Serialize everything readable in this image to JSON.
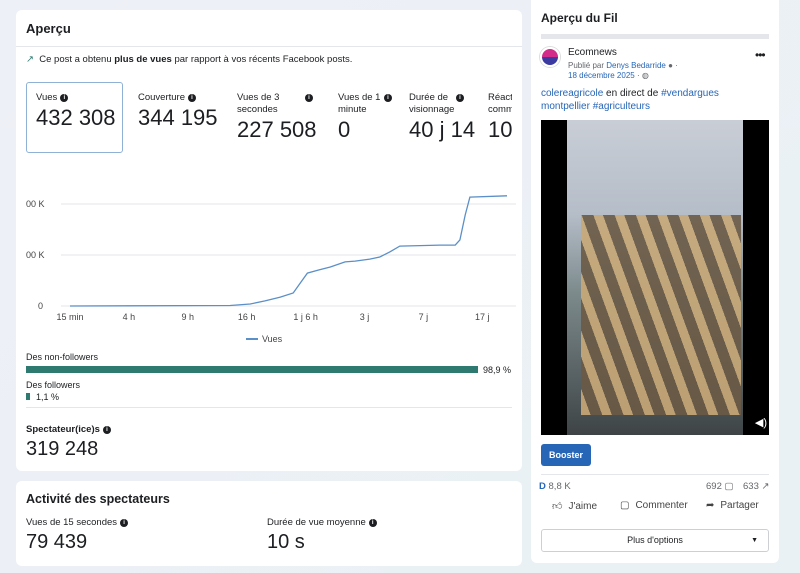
{
  "overview": {
    "title": "Aperçu",
    "insight_pre": "Ce post a obtenu ",
    "insight_bold": "plus de vues",
    "insight_post": " par rapport à vos récents Facebook posts.",
    "metrics": [
      {
        "label": "Vues",
        "value": "432 308"
      },
      {
        "label": "Couverture",
        "value": "344 195"
      },
      {
        "label": "Vues de 3 secondes",
        "value": "227 508"
      },
      {
        "label": "Vues de 1 minute",
        "value": "0"
      },
      {
        "label": "Durée de visionnage",
        "value": "40 j 14 h"
      },
      {
        "label": "Réact comm",
        "value": "10"
      }
    ],
    "legend": "Vues",
    "non_followers_label": "Des non-followers",
    "non_followers_pct": "98,9 %",
    "followers_label": "Des followers",
    "followers_pct": "1,1 %",
    "spectators_label": "Spectateur(ice)s",
    "spectators_value": "319 248"
  },
  "chart_data": {
    "type": "line",
    "x_tick_labels": [
      "15 min",
      "4 h",
      "9 h",
      "16 h",
      "1 j 6 h",
      "3 j",
      "7 j",
      "17 j"
    ],
    "y_tick_labels": [
      "0",
      "00 K",
      "00 K"
    ],
    "y_ticks": [
      0,
      200000,
      400000
    ],
    "ylim": [
      0,
      440000
    ],
    "grid": true,
    "legend": "bottom",
    "color": "#5b8fc7",
    "series": [
      {
        "name": "Vues",
        "points": [
          [
            0,
            0
          ],
          [
            2.72,
            2000
          ],
          [
            3.06,
            8000
          ],
          [
            3.31,
            20000
          ],
          [
            3.57,
            35000
          ],
          [
            3.79,
            51000
          ],
          [
            3.91,
            90000
          ],
          [
            4.03,
            129000
          ],
          [
            4.22,
            141000
          ],
          [
            4.42,
            153000
          ],
          [
            4.67,
            173000
          ],
          [
            4.84,
            176000
          ],
          [
            5.09,
            184000
          ],
          [
            5.26,
            192000
          ],
          [
            5.43,
            212000
          ],
          [
            5.6,
            235000
          ],
          [
            6.28,
            239000
          ],
          [
            6.54,
            239000
          ],
          [
            6.62,
            259000
          ],
          [
            6.71,
            357000
          ],
          [
            6.79,
            427000
          ],
          [
            7.42,
            432308
          ]
        ]
      }
    ]
  },
  "activity": {
    "title": "Activité des spectateurs",
    "m1_label": "Vues de 15 secondes",
    "m1_value": "79 439",
    "m2_label": "Durée de vue moyenne",
    "m2_value": "10 s"
  },
  "feed": {
    "title": "Aperçu du Fil",
    "page": "Ecomnews",
    "published_by": "Publié par ",
    "author": "Denys Bedarride",
    "date": "18 décembre 2025",
    "text1_tag": "colereagricole",
    "text1_mid": " en direct de ",
    "text1_tag2": "#vendargues",
    "text2": "montpellier #agriculteurs",
    "boost": "Booster",
    "reactions": "8,8 K",
    "comments": "692",
    "shares": "633",
    "like": "J'aime",
    "comment": "Commenter",
    "share": "Partager",
    "more": "Plus d'options",
    "accent": "#2766b7"
  }
}
